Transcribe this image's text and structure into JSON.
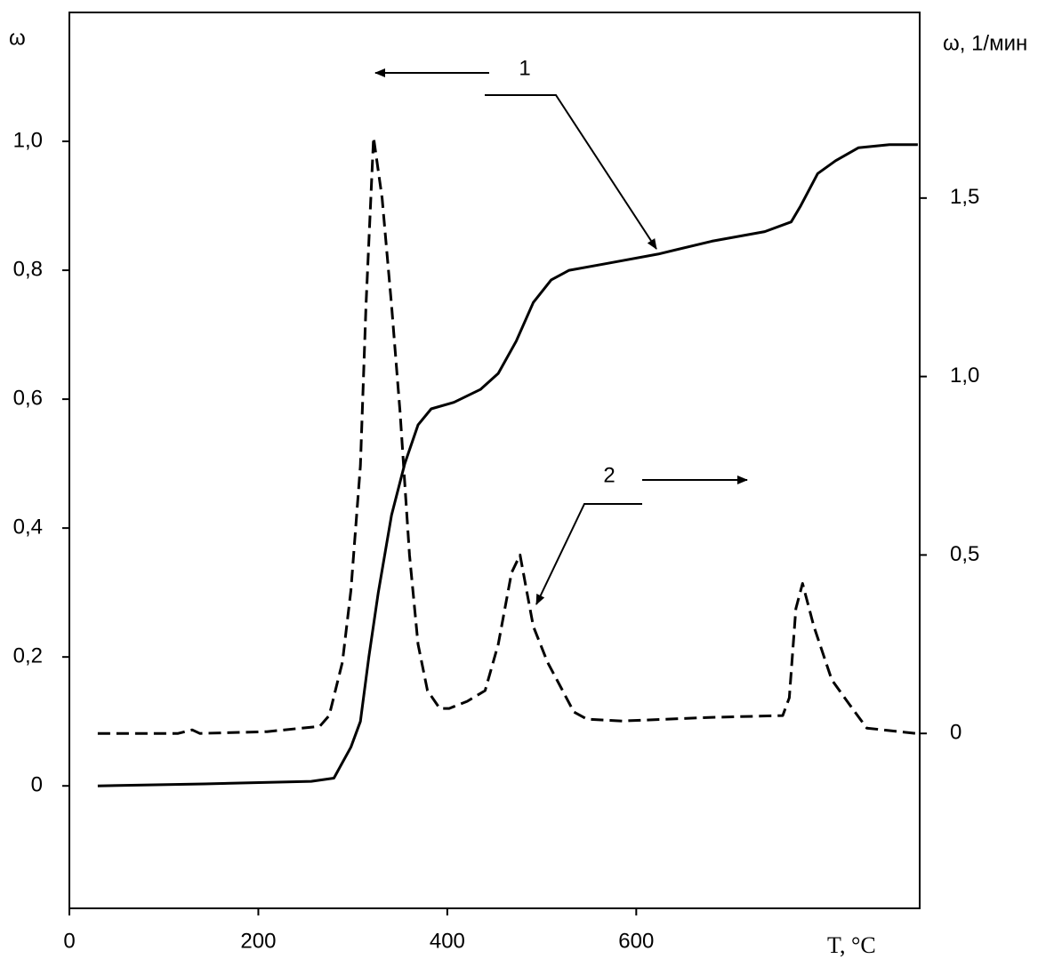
{
  "chart_data": {
    "type": "line",
    "y_label": "ω",
    "y2_label": "ω, 1/мин",
    "x_label": "T, °C",
    "xlim": [
      0,
      900
    ],
    "xticks": [
      0,
      200,
      400,
      600
    ],
    "ylim": [
      -0.19,
      1.2
    ],
    "yticks": [
      0,
      {
        "value": 0.2,
        "label": "0,2"
      },
      {
        "value": 0.4,
        "label": "0,4"
      },
      {
        "value": 0.6,
        "label": "0,6"
      },
      {
        "value": 0.8,
        "label": "0,8"
      },
      {
        "value": 1.0,
        "label": "1,0"
      }
    ],
    "y2lim": [
      -0.49,
      2.02
    ],
    "y2ticks": [
      0,
      {
        "value": 0.5,
        "label": "0,5"
      },
      {
        "value": 1.0,
        "label": "1,0"
      },
      {
        "value": 1.5,
        "label": "1,5"
      }
    ],
    "series": [
      {
        "name": "1",
        "color": "#000000",
        "dashed": false,
        "x": [
          30,
          143,
          256,
          280,
          298,
          308,
          317,
          327,
          341,
          355,
          369,
          383,
          407,
          435,
          454,
          473,
          491,
          510,
          529,
          567,
          623,
          680,
          736,
          764,
          774,
          792,
          811,
          835,
          868,
          898
        ],
        "values": [
          0,
          0.003,
          0.007,
          0.012,
          0.06,
          0.1,
          0.2,
          0.3,
          0.42,
          0.5,
          0.56,
          0.585,
          0.595,
          0.615,
          0.64,
          0.69,
          0.75,
          0.785,
          0.8,
          0.81,
          0.825,
          0.845,
          0.86,
          0.875,
          0.9,
          0.95,
          0.97,
          0.99,
          0.995,
          0.995
        ]
      },
      {
        "name": "2",
        "color": "#000000",
        "dashed": true,
        "axis": "y2",
        "x": [
          30,
          115,
          130,
          138,
          209,
          265,
          275,
          289,
          298,
          308,
          314,
          322,
          331,
          341,
          350,
          360,
          369,
          379,
          392,
          402,
          421,
          440,
          454,
          468,
          477,
          484,
          491,
          506,
          520,
          534,
          548,
          585,
          680,
          755,
          762,
          769,
          776,
          788,
          807,
          826,
          844,
          896
        ],
        "values": [
          0,
          0,
          0.01,
          0,
          0.005,
          0.02,
          0.05,
          0.2,
          0.4,
          0.75,
          1.2,
          1.67,
          1.5,
          1.2,
          0.9,
          0.5,
          0.25,
          0.12,
          0.07,
          0.07,
          0.09,
          0.12,
          0.25,
          0.45,
          0.5,
          0.4,
          0.3,
          0.2,
          0.13,
          0.06,
          0.04,
          0.035,
          0.045,
          0.05,
          0.1,
          0.35,
          0.42,
          0.3,
          0.15,
          0.08,
          0.015,
          0
        ]
      }
    ]
  }
}
